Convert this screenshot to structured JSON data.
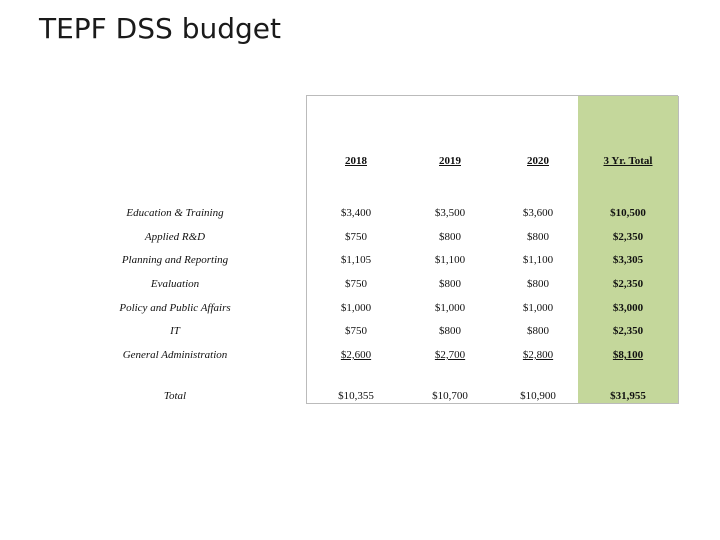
{
  "slide": {
    "title": "TEPF DSS budget"
  },
  "table": {
    "headers": [
      "2018",
      "2019",
      "2020",
      "3 Yr. Total"
    ],
    "rows": [
      {
        "label": "Education & Training",
        "y2018": "$3,400",
        "y2019": "$3,500",
        "y2020": "$3,600",
        "total": "$10,500"
      },
      {
        "label": "Applied R&D",
        "y2018": "$750",
        "y2019": "$800",
        "y2020": "$800",
        "total": "$2,350"
      },
      {
        "label": "Planning and Reporting",
        "y2018": "$1,105",
        "y2019": "$1,100",
        "y2020": "$1,100",
        "total": "$3,305"
      },
      {
        "label": "Evaluation",
        "y2018": "$750",
        "y2019": "$800",
        "y2020": "$800",
        "total": "$2,350"
      },
      {
        "label": "Policy and Public Affairs",
        "y2018": "$1,000",
        "y2019": "$1,000",
        "y2020": "$1,000",
        "total": "$3,000"
      },
      {
        "label": "IT",
        "y2018": "$750",
        "y2019": "$800",
        "y2020": "$800",
        "total": "$2,350"
      },
      {
        "label": "General Administration",
        "y2018": "$2,600",
        "y2019": "$2,700",
        "y2020": "$2,800",
        "total": "$8,100"
      },
      {
        "label": "Total",
        "y2018": "$10,355",
        "y2019": "$10,700",
        "y2020": "$10,900",
        "total": "$31,955"
      }
    ],
    "total_column_color": "#c4d79b"
  }
}
